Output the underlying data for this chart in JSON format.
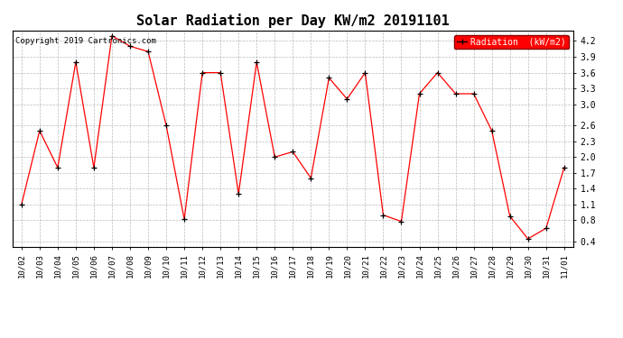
{
  "title": "Solar Radiation per Day KW/m2 20191101",
  "copyright_text": "Copyright 2019 Cartronics.com",
  "legend_label": "Radiation  (kW/m2)",
  "x_labels": [
    "10/02",
    "10/03",
    "10/04",
    "10/05",
    "10/06",
    "10/07",
    "10/08",
    "10/09",
    "10/10",
    "10/11",
    "10/12",
    "10/13",
    "10/14",
    "10/15",
    "10/16",
    "10/17",
    "10/18",
    "10/19",
    "10/20",
    "10/21",
    "10/22",
    "10/23",
    "10/24",
    "10/25",
    "10/26",
    "10/27",
    "10/28",
    "10/29",
    "10/30",
    "10/31",
    "11/01"
  ],
  "values": [
    1.1,
    2.5,
    1.8,
    3.8,
    1.8,
    4.3,
    4.1,
    4.0,
    2.6,
    0.82,
    3.6,
    3.6,
    1.3,
    3.8,
    2.0,
    2.1,
    1.6,
    3.5,
    3.1,
    3.6,
    0.9,
    0.78,
    3.2,
    3.6,
    3.2,
    3.2,
    2.5,
    0.88,
    0.45,
    0.65,
    1.8
  ],
  "line_color": "red",
  "marker_color": "black",
  "marker_style": "+",
  "ylim": [
    0.3,
    4.4
  ],
  "yticks": [
    0.4,
    0.8,
    1.1,
    1.4,
    1.7,
    2.0,
    2.3,
    2.6,
    3.0,
    3.3,
    3.6,
    3.9,
    4.2
  ],
  "background_color": "#ffffff",
  "grid_color": "#aaaaaa",
  "legend_bg": "red",
  "title_fontsize": 11,
  "copyright_fontsize": 6.5,
  "tick_fontsize": 6.5,
  "legend_fontsize": 7
}
